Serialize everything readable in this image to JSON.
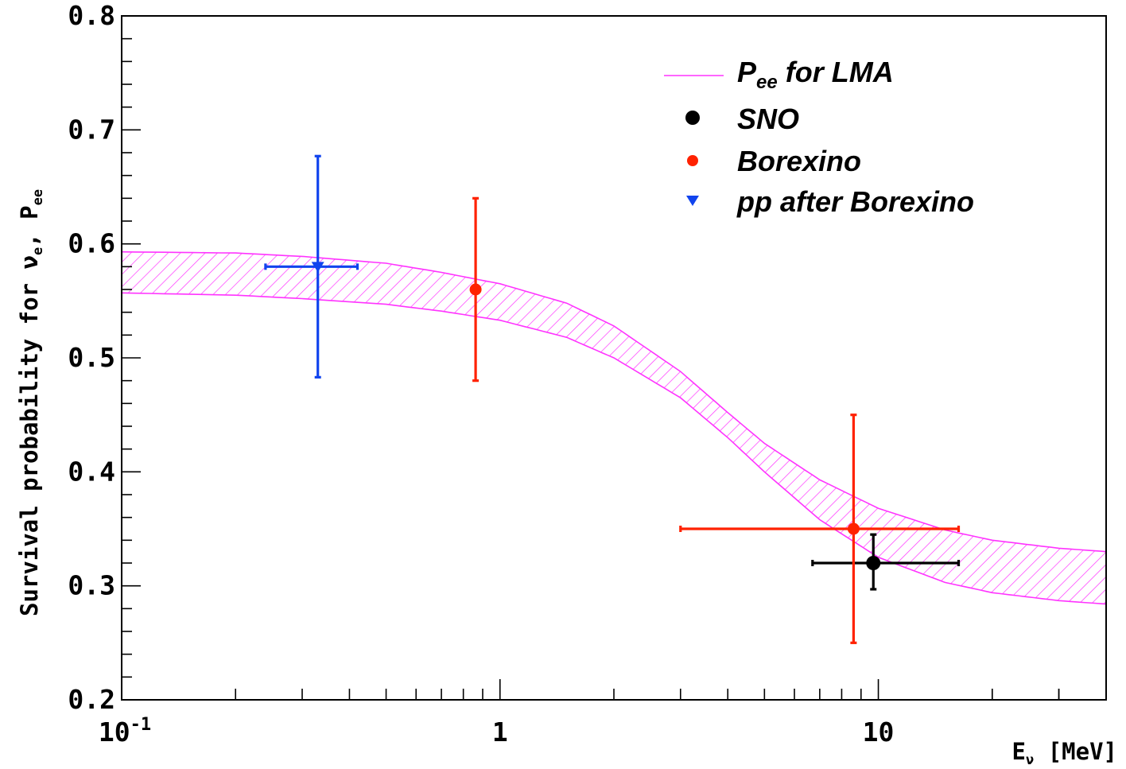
{
  "chart_data": {
    "type": "scatter",
    "xscale": "log",
    "xlim": [
      0.1,
      40
    ],
    "ylim": [
      0.2,
      0.8
    ],
    "xlabel": {
      "main": "E",
      "sub": "ν",
      "unit": "[MeV]"
    },
    "ylabel": {
      "main": "Survival probability for ν",
      "sub1": "e",
      "mid": ",  P",
      "sub2": "ee"
    },
    "xticks": [
      {
        "value": 0.1,
        "base": "10",
        "exp": "-1"
      },
      {
        "value": 1,
        "base": "1",
        "exp": ""
      },
      {
        "value": 10,
        "base": "10",
        "exp": ""
      }
    ],
    "yticks": [
      "0.2",
      "0.3",
      "0.4",
      "0.5",
      "0.6",
      "0.7",
      "0.8"
    ],
    "band": {
      "name": {
        "main": "P",
        "sub": "ee",
        "rest": " for LMA"
      },
      "color": "#ff33ff",
      "upper": [
        [
          0.1,
          0.593
        ],
        [
          0.2,
          0.592
        ],
        [
          0.3,
          0.589
        ],
        [
          0.5,
          0.583
        ],
        [
          0.7,
          0.575
        ],
        [
          1.0,
          0.565
        ],
        [
          1.5,
          0.548
        ],
        [
          2.0,
          0.528
        ],
        [
          3.0,
          0.488
        ],
        [
          4.0,
          0.452
        ],
        [
          5.0,
          0.425
        ],
        [
          7.0,
          0.393
        ],
        [
          10.0,
          0.368
        ],
        [
          15.0,
          0.349
        ],
        [
          20.0,
          0.34
        ],
        [
          30.0,
          0.333
        ],
        [
          40.0,
          0.33
        ]
      ],
      "lower": [
        [
          0.1,
          0.557
        ],
        [
          0.2,
          0.555
        ],
        [
          0.3,
          0.552
        ],
        [
          0.5,
          0.547
        ],
        [
          0.7,
          0.541
        ],
        [
          1.0,
          0.533
        ],
        [
          1.5,
          0.518
        ],
        [
          2.0,
          0.5
        ],
        [
          3.0,
          0.465
        ],
        [
          4.0,
          0.43
        ],
        [
          5.0,
          0.4
        ],
        [
          7.0,
          0.358
        ],
        [
          10.0,
          0.325
        ],
        [
          15.0,
          0.303
        ],
        [
          20.0,
          0.294
        ],
        [
          30.0,
          0.287
        ],
        [
          40.0,
          0.284
        ]
      ]
    },
    "series": [
      {
        "name": "SNO",
        "color": "#000000",
        "marker": "circle",
        "points": [
          {
            "x": 9.7,
            "y": 0.32,
            "xlo": 6.7,
            "xhi": 16.3,
            "ylo": 0.297,
            "yhi": 0.345
          }
        ]
      },
      {
        "name": "Borexino",
        "color": "#ff2200",
        "marker": "circle",
        "points": [
          {
            "x": 0.862,
            "y": 0.56,
            "xlo": 0.862,
            "xhi": 0.862,
            "ylo": 0.48,
            "yhi": 0.64
          },
          {
            "x": 8.6,
            "y": 0.35,
            "xlo": 3.0,
            "xhi": 16.3,
            "ylo": 0.25,
            "yhi": 0.45
          }
        ]
      },
      {
        "name": "pp after Borexino",
        "color": "#1144ee",
        "marker": "triangle-down",
        "points": [
          {
            "x": 0.33,
            "y": 0.58,
            "xlo": 0.24,
            "xhi": 0.42,
            "ylo": 0.483,
            "yhi": 0.677
          }
        ]
      }
    ],
    "legend": "top-right",
    "grid": false
  }
}
